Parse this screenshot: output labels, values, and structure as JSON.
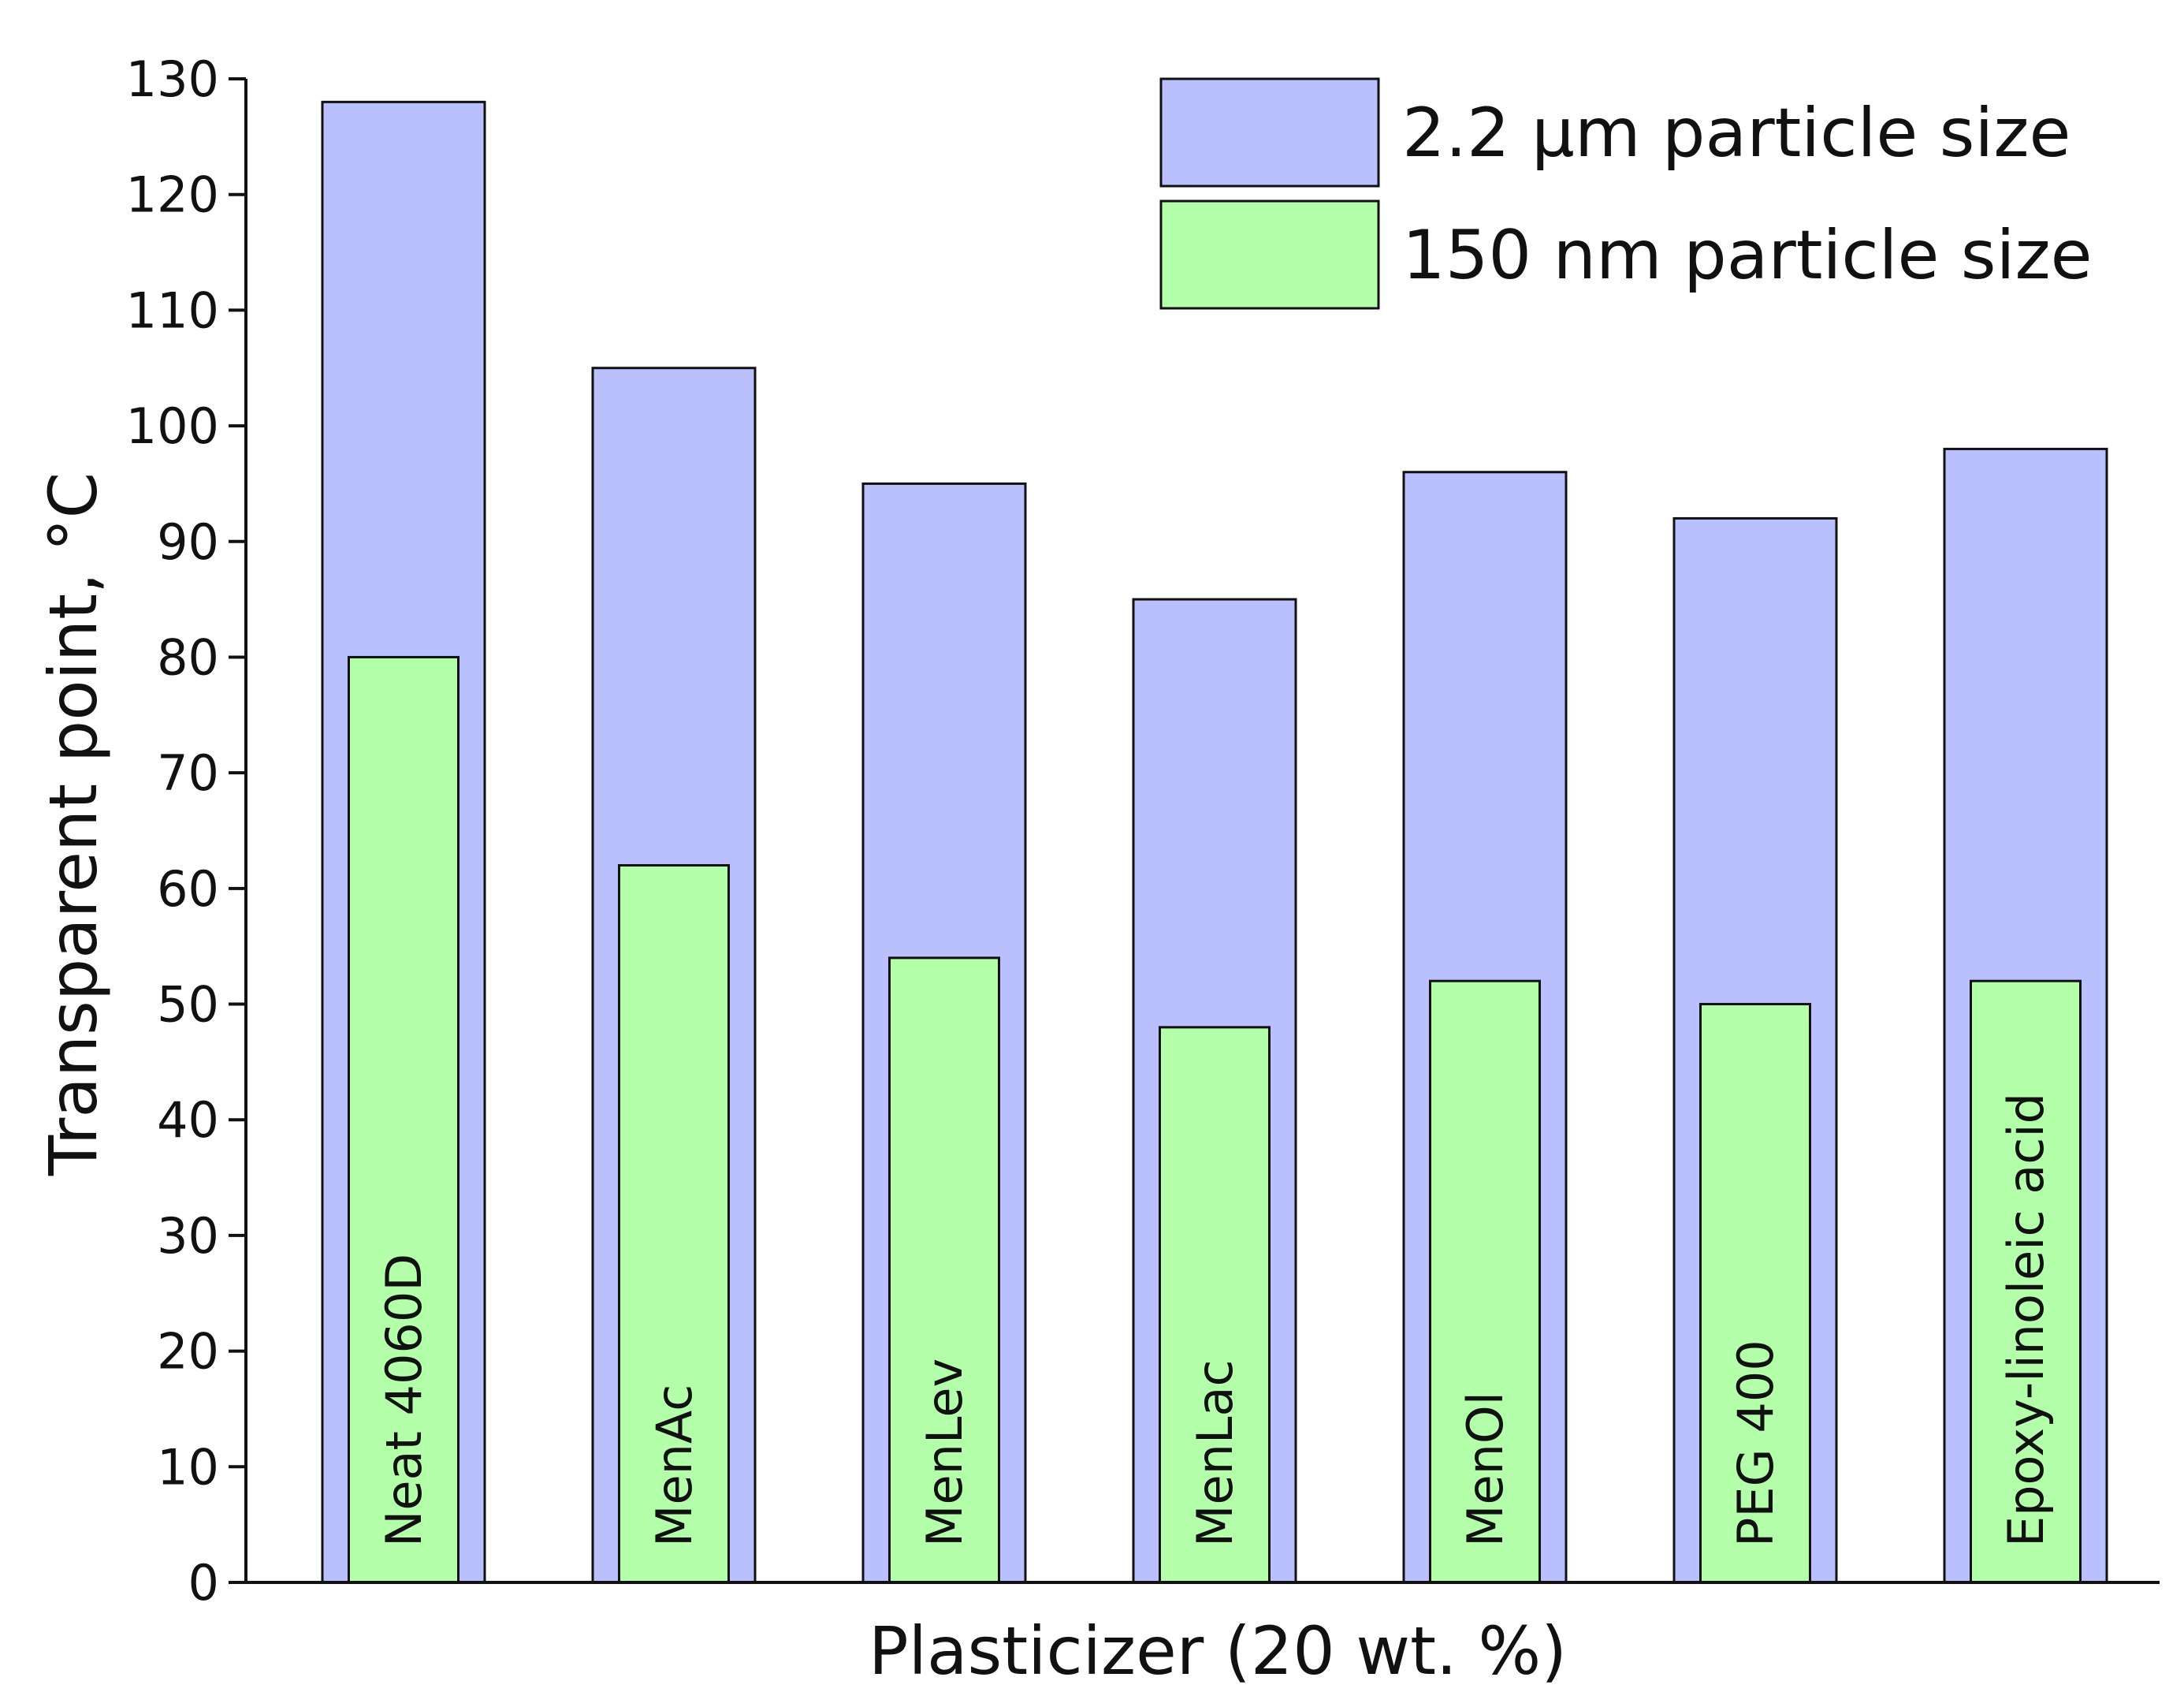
{
  "chart_data": {
    "type": "bar",
    "categories": [
      "Neat 4060D",
      "MenAc",
      "MenLev",
      "MenLac",
      "MenOl",
      "PEG 400",
      "Epoxy-linoleic acid"
    ],
    "series": [
      {
        "name": "2.2 μm particle size",
        "values": [
          128,
          105,
          95,
          85,
          96,
          92,
          98
        ],
        "color": "#babffd"
      },
      {
        "name": "150 nm particle size",
        "values": [
          80,
          62,
          54,
          48,
          52,
          50,
          52
        ],
        "color": "#b3ffaa"
      }
    ],
    "xlabel": "Plasticizer (20 wt. %)",
    "ylabel": "Transparent point, °C",
    "ylim": [
      0,
      130
    ],
    "yticks": [
      0,
      10,
      20,
      30,
      40,
      50,
      60,
      70,
      80,
      90,
      100,
      110,
      120,
      130
    ],
    "grid": false,
    "legend": "top-right",
    "category_labels_inside_bars": true
  }
}
